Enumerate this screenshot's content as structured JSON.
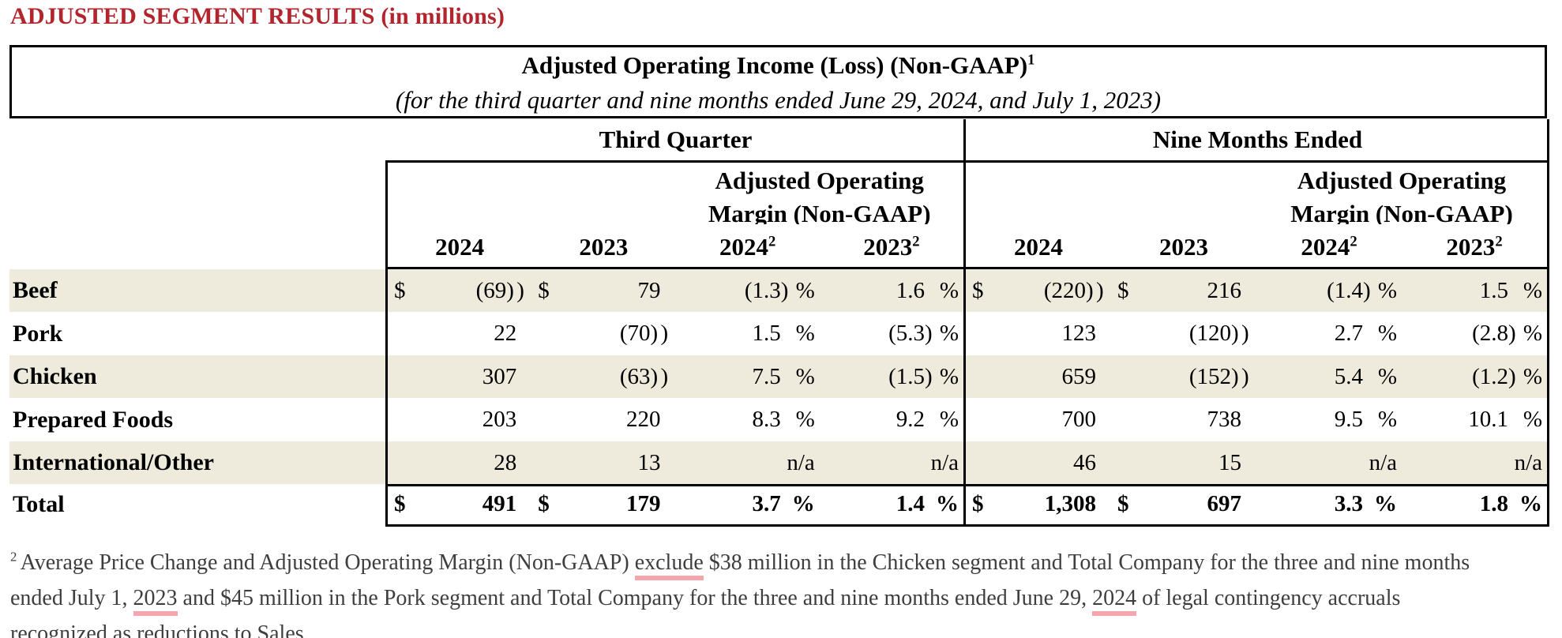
{
  "page_title": "ADJUSTED SEGMENT RESULTS (in millions)",
  "colors": {
    "accent_red": "#b2252d",
    "row_shade": "#eeeadc",
    "underline_pink": "#f3a6ad",
    "footnote_gray": "#3e3e3e"
  },
  "table": {
    "title": "Adjusted Operating Income (Loss) (Non-GAAP)",
    "title_sup": "1",
    "subtitle": "(for the third quarter and nine months ended June 29, 2024, and July 1, 2023)",
    "groups": [
      {
        "label": "Third Quarter"
      },
      {
        "label": "Nine Months Ended"
      }
    ],
    "margin_header_line1": "Adjusted Operating",
    "margin_header_line2": "Margin (Non-GAAP)",
    "year_columns": [
      {
        "label": "2024",
        "sup": ""
      },
      {
        "label": "2023",
        "sup": ""
      },
      {
        "label": "2024",
        "sup": "2"
      },
      {
        "label": "2023",
        "sup": "2"
      }
    ],
    "rows": [
      {
        "label": "Beef",
        "shaded": true,
        "bold": false,
        "third_quarter": [
          "$ (69)",
          "$ 79",
          "(1.3)%",
          "1.6 %"
        ],
        "nine_months": [
          "$ (220)",
          "$ 216",
          "(1.4)%",
          "1.5 %"
        ]
      },
      {
        "label": "Pork",
        "shaded": false,
        "bold": false,
        "third_quarter": [
          "22",
          "(70)",
          "1.5 %",
          "(5.3)%"
        ],
        "nine_months": [
          "123",
          "(120)",
          "2.7 %",
          "(2.8)%"
        ]
      },
      {
        "label": "Chicken",
        "shaded": true,
        "bold": false,
        "third_quarter": [
          "307",
          "(63)",
          "7.5 %",
          "(1.5)%"
        ],
        "nine_months": [
          "659",
          "(152)",
          "5.4 %",
          "(1.2)%"
        ]
      },
      {
        "label": "Prepared Foods",
        "shaded": false,
        "bold": false,
        "third_quarter": [
          "203",
          "220",
          "8.3 %",
          "9.2 %"
        ],
        "nine_months": [
          "700",
          "738",
          "9.5 %",
          "10.1 %"
        ]
      },
      {
        "label": "International/Other",
        "shaded": true,
        "bold": false,
        "third_quarter": [
          "28",
          "13",
          "n/a",
          "n/a"
        ],
        "nine_months": [
          "46",
          "15",
          "n/a",
          "n/a"
        ]
      },
      {
        "label": "Total",
        "shaded": false,
        "bold": true,
        "third_quarter": [
          "$ 491",
          "$ 179",
          "3.7 %",
          "1.4 %"
        ],
        "nine_months": [
          "$ 1,308",
          "$ 697",
          "3.3 %",
          "1.8 %"
        ]
      }
    ]
  },
  "footnote": {
    "sup": "2",
    "lines": [
      [
        {
          "text": "Average Price Change and Adjusted Operating Margin (Non-GAAP) "
        },
        {
          "text": "exclude",
          "underline": true
        },
        {
          "text": " $38 million in the Chicken segment and Total Company for the three and nine months"
        }
      ],
      [
        {
          "text": "ended July 1, "
        },
        {
          "text": "2023",
          "underline": true
        },
        {
          "text": " and $45 million in the Pork segment and Total Company for the three and nine months ended June 29, "
        },
        {
          "text": "2024",
          "underline": true
        },
        {
          "text": " of legal contingency accruals"
        }
      ],
      [
        {
          "text": "recognized as reductions to Sales."
        }
      ]
    ]
  }
}
